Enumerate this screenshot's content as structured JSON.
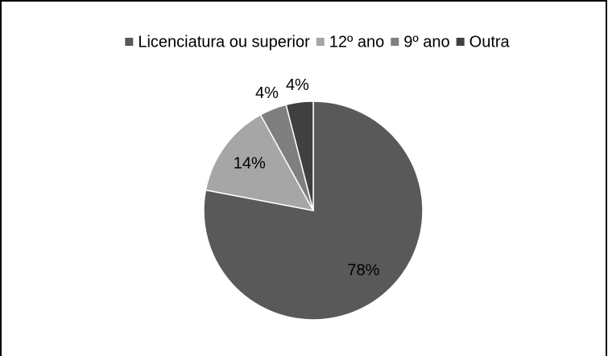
{
  "chart_data": {
    "type": "pie",
    "categories": [
      "Licenciatura ou superior",
      "12º ano",
      "9º ano",
      "Outra"
    ],
    "values": [
      78,
      14,
      4,
      4
    ],
    "value_labels": [
      "78%",
      "14%",
      "4%",
      "4%"
    ],
    "colors": [
      "#595959",
      "#a6a6a6",
      "#7f7f7f",
      "#404040"
    ],
    "legend": "top"
  }
}
